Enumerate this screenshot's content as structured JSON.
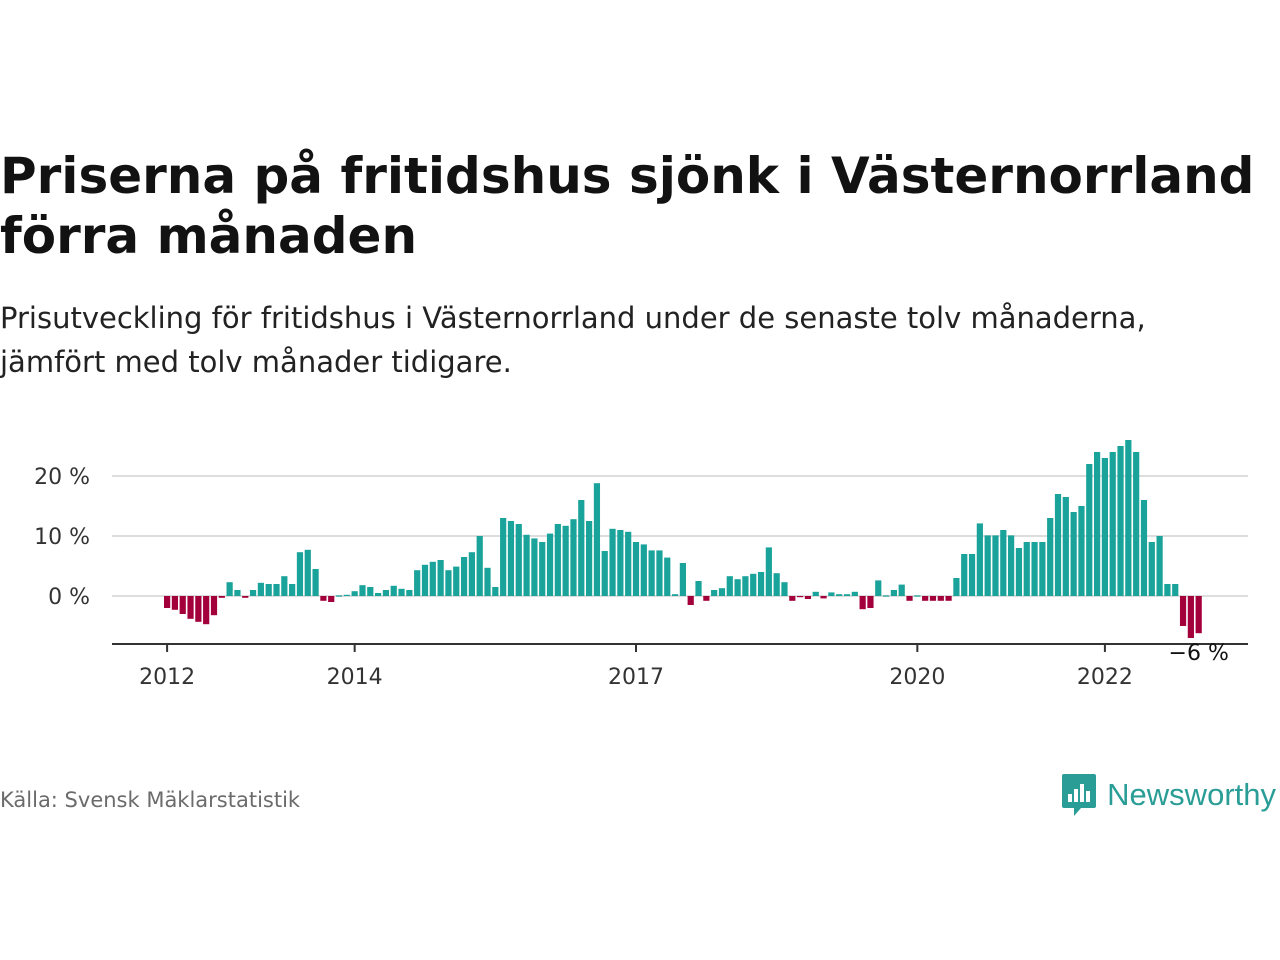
{
  "title": "Priserna på fritidshus sjönk i Västernorrland förra månaden",
  "subtitle": "Prisutveckling för fritidshus i Västernorrland under de senaste tolv månaderna, jämfört med tolv månader tidigare.",
  "source": "Källa: Svensk Mäklarstatistik",
  "brand": {
    "name": "Newsworthy",
    "logo_icon": "bar-chart-speech-bubble-icon"
  },
  "colors": {
    "positive": "#1aa39b",
    "negative": "#a3003b",
    "grid": "#dddddd",
    "axis": "#333333",
    "brand": "#2a9d96"
  },
  "chart_data": {
    "type": "bar",
    "ylim": [
      -8,
      27
    ],
    "yticks": [
      {
        "value": 0,
        "label": "0 %"
      },
      {
        "value": 10,
        "label": "10 %"
      },
      {
        "value": 20,
        "label": "20 %"
      }
    ],
    "xticks": [
      {
        "index": 0,
        "label": "2012"
      },
      {
        "index": 24,
        "label": "2014"
      },
      {
        "index": 60,
        "label": "2017"
      },
      {
        "index": 96,
        "label": "2020"
      },
      {
        "index": 120,
        "label": "2022"
      }
    ],
    "grid": true,
    "last_value_label": "−6 %",
    "start_month": "2012-01",
    "values": [
      -2,
      -2.3,
      -3,
      -3.8,
      -4.3,
      -4.7,
      -3.2,
      -0.3,
      2.3,
      1,
      -0.3,
      1,
      2.2,
      2,
      2,
      3.3,
      2,
      7.3,
      7.7,
      4.5,
      -0.8,
      -1,
      0,
      0.2,
      0.8,
      1.8,
      1.5,
      0.5,
      1,
      1.7,
      1.2,
      1,
      4.3,
      5.2,
      5.7,
      6,
      4.3,
      4.9,
      6.5,
      7.3,
      10,
      4.7,
      1.5,
      13,
      12.5,
      12,
      10.2,
      9.6,
      9,
      10.4,
      12,
      11.7,
      12.8,
      16,
      12.5,
      18.8,
      7.5,
      11.2,
      11,
      10.7,
      9,
      8.6,
      7.6,
      7.6,
      6.4,
      0.3,
      5.5,
      -1.5,
      2.5,
      -0.8,
      1,
      1.3,
      3.3,
      2.8,
      3.3,
      3.7,
      4,
      8.1,
      3.8,
      2.3,
      -0.8,
      -0.2,
      -0.5,
      0.7,
      -0.4,
      0.6,
      0.3,
      0.3,
      0.7,
      -2.2,
      -2,
      2.6,
      0,
      1,
      1.9,
      -0.8,
      0,
      -0.8,
      -0.8,
      -0.8,
      -0.8,
      3,
      7,
      7,
      12.1,
      10.1,
      10.1,
      11,
      10.1,
      8,
      9,
      9,
      9,
      13,
      17,
      16.5,
      14,
      15,
      22,
      24,
      23,
      24,
      25,
      26,
      24,
      16,
      9,
      10,
      2,
      2,
      -5,
      -7,
      -6.2
    ]
  }
}
